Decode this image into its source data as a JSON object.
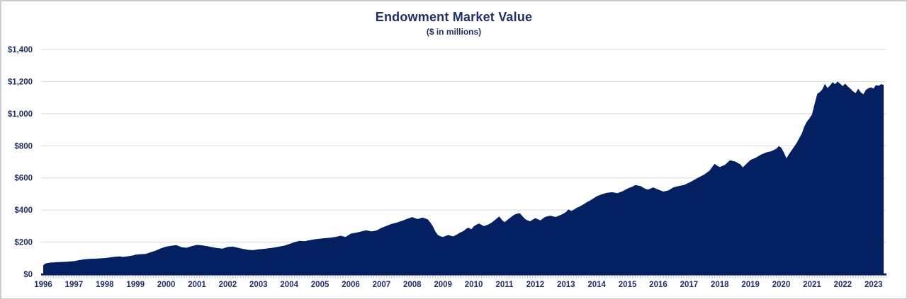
{
  "title": "Endowment Market Value",
  "subtitle": "($ in millions)",
  "colors": {
    "fill": "#052060",
    "axis_line": "#052060",
    "text": "#1F3168",
    "gridline": "#D9D9D9",
    "minor_tick": "#B7BECF",
    "background": "#FFFFFF",
    "border": "#C9CCD2"
  },
  "chart_data": {
    "type": "area",
    "title": "Endowment Market Value",
    "subtitle": "($ in millions)",
    "x_unit": "fiscal year (decimal years, monthly resolution)",
    "xlim": [
      1996,
      2023.42
    ],
    "ylim": [
      0,
      1400
    ],
    "grid": true,
    "legend": false,
    "y_ticks": [
      0,
      200,
      400,
      600,
      800,
      1000,
      1200,
      1400
    ],
    "y_tick_labels": [
      "$0",
      "$200",
      "$400",
      "$600",
      "$800",
      "$1,000",
      "$1,200",
      "$1,400"
    ],
    "x_tick_labels": [
      "1996",
      "1997",
      "1998",
      "1999",
      "2000",
      "2001",
      "2002",
      "2003",
      "2004",
      "2005",
      "2006",
      "2007",
      "2008",
      "2009",
      "2010",
      "2011",
      "2012",
      "2013",
      "2014",
      "2015",
      "2016",
      "2017",
      "2018",
      "2019",
      "2020",
      "2021",
      "2022",
      "2023"
    ],
    "points": [
      [
        1996.0,
        57
      ],
      [
        1996.08,
        68
      ],
      [
        1996.17,
        71
      ],
      [
        1996.25,
        73
      ],
      [
        1996.33,
        74
      ],
      [
        1996.5,
        76
      ],
      [
        1996.67,
        77
      ],
      [
        1996.83,
        79
      ],
      [
        1997.0,
        82
      ],
      [
        1997.17,
        88
      ],
      [
        1997.33,
        93
      ],
      [
        1997.5,
        96
      ],
      [
        1997.67,
        97
      ],
      [
        1997.83,
        99
      ],
      [
        1998.0,
        101
      ],
      [
        1998.17,
        105
      ],
      [
        1998.33,
        109
      ],
      [
        1998.5,
        111
      ],
      [
        1998.58,
        108
      ],
      [
        1998.75,
        112
      ],
      [
        1998.92,
        117
      ],
      [
        1999.0,
        122
      ],
      [
        1999.17,
        125
      ],
      [
        1999.33,
        127
      ],
      [
        1999.5,
        138
      ],
      [
        1999.67,
        148
      ],
      [
        1999.83,
        162
      ],
      [
        2000.0,
        172
      ],
      [
        2000.17,
        178
      ],
      [
        2000.33,
        182
      ],
      [
        2000.5,
        168
      ],
      [
        2000.67,
        165
      ],
      [
        2000.83,
        175
      ],
      [
        2001.0,
        183
      ],
      [
        2001.17,
        180
      ],
      [
        2001.33,
        175
      ],
      [
        2001.5,
        168
      ],
      [
        2001.67,
        163
      ],
      [
        2001.83,
        160
      ],
      [
        2002.0,
        170
      ],
      [
        2002.17,
        172
      ],
      [
        2002.33,
        165
      ],
      [
        2002.5,
        158
      ],
      [
        2002.67,
        152
      ],
      [
        2002.83,
        150
      ],
      [
        2003.0,
        155
      ],
      [
        2003.17,
        158
      ],
      [
        2003.33,
        162
      ],
      [
        2003.5,
        166
      ],
      [
        2003.67,
        172
      ],
      [
        2003.83,
        178
      ],
      [
        2004.0,
        188
      ],
      [
        2004.17,
        200
      ],
      [
        2004.33,
        208
      ],
      [
        2004.5,
        206
      ],
      [
        2004.67,
        212
      ],
      [
        2004.83,
        218
      ],
      [
        2005.0,
        222
      ],
      [
        2005.17,
        225
      ],
      [
        2005.33,
        228
      ],
      [
        2005.5,
        232
      ],
      [
        2005.67,
        240
      ],
      [
        2005.83,
        232
      ],
      [
        2006.0,
        253
      ],
      [
        2006.17,
        259
      ],
      [
        2006.33,
        266
      ],
      [
        2006.5,
        274
      ],
      [
        2006.67,
        267
      ],
      [
        2006.83,
        272
      ],
      [
        2007.0,
        289
      ],
      [
        2007.17,
        302
      ],
      [
        2007.33,
        314
      ],
      [
        2007.5,
        322
      ],
      [
        2007.67,
        333
      ],
      [
        2007.83,
        345
      ],
      [
        2008.0,
        356
      ],
      [
        2008.08,
        350
      ],
      [
        2008.17,
        344
      ],
      [
        2008.25,
        348
      ],
      [
        2008.33,
        353
      ],
      [
        2008.42,
        348
      ],
      [
        2008.5,
        342
      ],
      [
        2008.58,
        325
      ],
      [
        2008.67,
        298
      ],
      [
        2008.75,
        268
      ],
      [
        2008.83,
        245
      ],
      [
        2008.92,
        236
      ],
      [
        2009.0,
        232
      ],
      [
        2009.08,
        238
      ],
      [
        2009.17,
        245
      ],
      [
        2009.25,
        240
      ],
      [
        2009.33,
        236
      ],
      [
        2009.42,
        244
      ],
      [
        2009.5,
        253
      ],
      [
        2009.58,
        262
      ],
      [
        2009.67,
        270
      ],
      [
        2009.75,
        283
      ],
      [
        2009.83,
        290
      ],
      [
        2009.92,
        280
      ],
      [
        2010.0,
        298
      ],
      [
        2010.08,
        308
      ],
      [
        2010.17,
        316
      ],
      [
        2010.25,
        308
      ],
      [
        2010.33,
        300
      ],
      [
        2010.42,
        306
      ],
      [
        2010.5,
        312
      ],
      [
        2010.58,
        322
      ],
      [
        2010.67,
        335
      ],
      [
        2010.75,
        348
      ],
      [
        2010.83,
        360
      ],
      [
        2010.92,
        338
      ],
      [
        2011.0,
        324
      ],
      [
        2011.08,
        337
      ],
      [
        2011.17,
        350
      ],
      [
        2011.25,
        362
      ],
      [
        2011.33,
        372
      ],
      [
        2011.42,
        378
      ],
      [
        2011.5,
        380
      ],
      [
        2011.58,
        362
      ],
      [
        2011.67,
        344
      ],
      [
        2011.75,
        336
      ],
      [
        2011.83,
        330
      ],
      [
        2011.92,
        340
      ],
      [
        2012.0,
        350
      ],
      [
        2012.08,
        343
      ],
      [
        2012.17,
        336
      ],
      [
        2012.25,
        348
      ],
      [
        2012.33,
        358
      ],
      [
        2012.42,
        362
      ],
      [
        2012.5,
        365
      ],
      [
        2012.58,
        360
      ],
      [
        2012.67,
        357
      ],
      [
        2012.75,
        363
      ],
      [
        2012.83,
        370
      ],
      [
        2012.92,
        378
      ],
      [
        2013.0,
        388
      ],
      [
        2013.08,
        404
      ],
      [
        2013.17,
        394
      ],
      [
        2013.25,
        402
      ],
      [
        2013.33,
        412
      ],
      [
        2013.42,
        420
      ],
      [
        2013.5,
        428
      ],
      [
        2013.58,
        437
      ],
      [
        2013.67,
        448
      ],
      [
        2013.75,
        456
      ],
      [
        2013.83,
        465
      ],
      [
        2013.92,
        476
      ],
      [
        2014.0,
        486
      ],
      [
        2014.17,
        499
      ],
      [
        2014.33,
        507
      ],
      [
        2014.5,
        511
      ],
      [
        2014.67,
        505
      ],
      [
        2014.83,
        516
      ],
      [
        2015.0,
        534
      ],
      [
        2015.17,
        547
      ],
      [
        2015.25,
        556
      ],
      [
        2015.42,
        550
      ],
      [
        2015.58,
        532
      ],
      [
        2015.67,
        527
      ],
      [
        2015.83,
        541
      ],
      [
        2016.0,
        527
      ],
      [
        2016.17,
        515
      ],
      [
        2016.33,
        522
      ],
      [
        2016.5,
        542
      ],
      [
        2016.67,
        550
      ],
      [
        2016.83,
        556
      ],
      [
        2017.0,
        570
      ],
      [
        2017.17,
        588
      ],
      [
        2017.33,
        605
      ],
      [
        2017.5,
        622
      ],
      [
        2017.67,
        646
      ],
      [
        2017.83,
        688
      ],
      [
        2017.92,
        676
      ],
      [
        2018.0,
        668
      ],
      [
        2018.17,
        682
      ],
      [
        2018.33,
        710
      ],
      [
        2018.5,
        702
      ],
      [
        2018.67,
        684
      ],
      [
        2018.75,
        666
      ],
      [
        2018.92,
        698
      ],
      [
        2019.0,
        712
      ],
      [
        2019.17,
        726
      ],
      [
        2019.33,
        744
      ],
      [
        2019.5,
        758
      ],
      [
        2019.67,
        766
      ],
      [
        2019.83,
        780
      ],
      [
        2019.92,
        798
      ],
      [
        2020.0,
        788
      ],
      [
        2020.08,
        760
      ],
      [
        2020.17,
        722
      ],
      [
        2020.25,
        748
      ],
      [
        2020.33,
        770
      ],
      [
        2020.5,
        818
      ],
      [
        2020.67,
        878
      ],
      [
        2020.75,
        920
      ],
      [
        2020.83,
        950
      ],
      [
        2020.92,
        972
      ],
      [
        2021.0,
        996
      ],
      [
        2021.08,
        1058
      ],
      [
        2021.17,
        1124
      ],
      [
        2021.25,
        1134
      ],
      [
        2021.33,
        1150
      ],
      [
        2021.42,
        1186
      ],
      [
        2021.5,
        1160
      ],
      [
        2021.58,
        1174
      ],
      [
        2021.67,
        1196
      ],
      [
        2021.75,
        1184
      ],
      [
        2021.83,
        1200
      ],
      [
        2021.92,
        1186
      ],
      [
        2022.0,
        1172
      ],
      [
        2022.08,
        1188
      ],
      [
        2022.17,
        1168
      ],
      [
        2022.25,
        1156
      ],
      [
        2022.33,
        1140
      ],
      [
        2022.42,
        1128
      ],
      [
        2022.5,
        1156
      ],
      [
        2022.58,
        1134
      ],
      [
        2022.67,
        1121
      ],
      [
        2022.75,
        1148
      ],
      [
        2022.83,
        1158
      ],
      [
        2022.92,
        1164
      ],
      [
        2023.0,
        1156
      ],
      [
        2023.08,
        1178
      ],
      [
        2023.17,
        1174
      ],
      [
        2023.25,
        1184
      ],
      [
        2023.33,
        1180
      ]
    ]
  }
}
